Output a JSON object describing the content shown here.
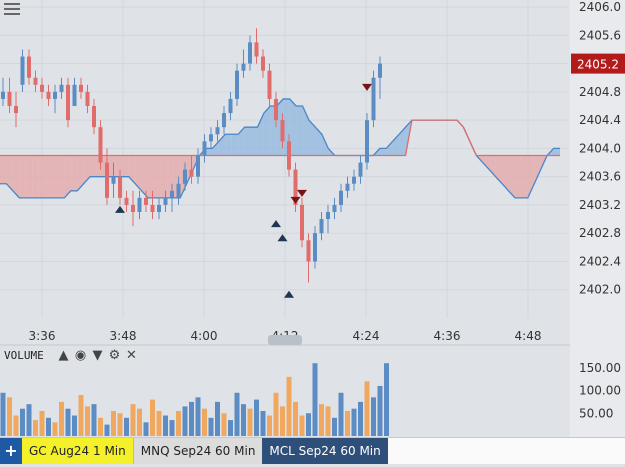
{
  "chart_data": [
    {
      "type": "candlestick",
      "title": "",
      "xlabel": "",
      "ylabel": "",
      "x_ticks": [
        "3:36",
        "3:48",
        "4:00",
        "4:12",
        "4:24",
        "4:36",
        "4:48"
      ],
      "y_ticks": [
        "2406.0",
        "2405.6",
        "2405.2",
        "2404.8",
        "2404.4",
        "2404.0",
        "2403.6",
        "2403.2",
        "2402.8",
        "2402.4",
        "2402.0"
      ],
      "ylim": [
        2401.6,
        2406.1
      ],
      "last_price_label": "2405.2",
      "last_price": 2405.2,
      "colors": {
        "up": "#5b8cc4",
        "down": "#e06c6c",
        "cloud_up": "#8fb6de",
        "cloud_down": "#e6a5a5",
        "span_a": "#4a86c8",
        "span_b": "#e06c6c",
        "price_tag": "#b31b1b"
      },
      "candles": [
        [
          2404.7,
          2405.0,
          2404.6,
          2404.8
        ],
        [
          2404.8,
          2405.0,
          2404.5,
          2404.6
        ],
        [
          2404.6,
          2404.8,
          2404.3,
          2404.5
        ],
        [
          2404.9,
          2405.4,
          2404.8,
          2405.3
        ],
        [
          2405.3,
          2405.4,
          2404.9,
          2405.0
        ],
        [
          2405.0,
          2405.1,
          2404.8,
          2404.9
        ],
        [
          2404.9,
          2405.0,
          2404.7,
          2404.8
        ],
        [
          2404.8,
          2404.9,
          2404.6,
          2404.7
        ],
        [
          2404.7,
          2404.9,
          2404.5,
          2404.8
        ],
        [
          2404.8,
          2405.0,
          2404.7,
          2404.9
        ],
        [
          2404.9,
          2405.0,
          2404.3,
          2404.4
        ],
        [
          2404.6,
          2405.0,
          2404.6,
          2404.9
        ],
        [
          2404.9,
          2405.0,
          2404.7,
          2404.8
        ],
        [
          2404.8,
          2404.9,
          2404.5,
          2404.6
        ],
        [
          2404.6,
          2404.7,
          2404.2,
          2404.3
        ],
        [
          2404.3,
          2404.4,
          2403.7,
          2403.8
        ],
        [
          2403.8,
          2404.0,
          2403.2,
          2403.3
        ],
        [
          2403.5,
          2403.8,
          2403.3,
          2403.6
        ],
        [
          2403.6,
          2403.7,
          2403.2,
          2403.3
        ],
        [
          2403.3,
          2403.4,
          2403.1,
          2403.2
        ],
        [
          2403.2,
          2403.4,
          2402.9,
          2403.1
        ],
        [
          2403.1,
          2403.4,
          2403.0,
          2403.3
        ],
        [
          2403.3,
          2403.4,
          2403.1,
          2403.2
        ],
        [
          2403.2,
          2403.4,
          2403.0,
          2403.1
        ],
        [
          2403.1,
          2403.3,
          2403.0,
          2403.2
        ],
        [
          2403.2,
          2403.4,
          2403.1,
          2403.3
        ],
        [
          2403.3,
          2403.5,
          2403.1,
          2403.4
        ],
        [
          2403.3,
          2403.6,
          2403.2,
          2403.5
        ],
        [
          2403.5,
          2403.8,
          2403.4,
          2403.7
        ],
        [
          2403.7,
          2403.9,
          2403.5,
          2403.6
        ],
        [
          2403.6,
          2404.0,
          2403.5,
          2403.9
        ],
        [
          2403.9,
          2404.2,
          2403.8,
          2404.1
        ],
        [
          2404.1,
          2404.3,
          2404.0,
          2404.2
        ],
        [
          2404.2,
          2404.4,
          2404.1,
          2404.3
        ],
        [
          2404.3,
          2404.6,
          2404.2,
          2404.5
        ],
        [
          2404.5,
          2404.8,
          2404.4,
          2404.7
        ],
        [
          2404.7,
          2405.2,
          2404.6,
          2405.1
        ],
        [
          2405.1,
          2405.4,
          2405.0,
          2405.2
        ],
        [
          2405.2,
          2405.6,
          2405.1,
          2405.5
        ],
        [
          2405.5,
          2405.7,
          2405.2,
          2405.3
        ],
        [
          2405.3,
          2405.4,
          2405.0,
          2405.1
        ],
        [
          2405.1,
          2405.2,
          2404.6,
          2404.7
        ],
        [
          2404.7,
          2404.8,
          2404.3,
          2404.4
        ],
        [
          2404.4,
          2404.5,
          2404.0,
          2404.1
        ],
        [
          2404.1,
          2404.2,
          2403.6,
          2403.7
        ],
        [
          2403.7,
          2403.8,
          2403.1,
          2403.2
        ],
        [
          2403.2,
          2403.3,
          2402.6,
          2402.7
        ],
        [
          2402.7,
          2402.8,
          2402.1,
          2402.4
        ],
        [
          2402.4,
          2402.9,
          2402.3,
          2402.8
        ],
        [
          2402.8,
          2403.1,
          2402.7,
          2403.0
        ],
        [
          2403.0,
          2403.2,
          2402.8,
          2403.1
        ],
        [
          2403.1,
          2403.3,
          2403.0,
          2403.2
        ],
        [
          2403.2,
          2403.5,
          2403.1,
          2403.4
        ],
        [
          2403.4,
          2403.6,
          2403.3,
          2403.5
        ],
        [
          2403.5,
          2403.7,
          2403.4,
          2403.6
        ],
        [
          2403.6,
          2403.9,
          2403.5,
          2403.8
        ],
        [
          2403.8,
          2404.5,
          2403.7,
          2404.4
        ],
        [
          2404.4,
          2405.1,
          2404.3,
          2405.0
        ],
        [
          2405.0,
          2405.3,
          2404.7,
          2405.2
        ]
      ],
      "cloud": {
        "span_a": [
          2403.5,
          2403.5,
          2403.4,
          2403.3,
          2403.3,
          2403.3,
          2403.3,
          2403.3,
          2403.3,
          2403.3,
          2403.3,
          2403.4,
          2403.4,
          2403.5,
          2403.6,
          2403.6,
          2403.6,
          2403.6,
          2403.6,
          2403.6,
          2403.6,
          2403.5,
          2403.4,
          2403.3,
          2403.3,
          2403.3,
          2403.3,
          2403.3,
          2403.3,
          2403.5,
          2403.7,
          2403.9,
          2404.0,
          2404.0,
          2404.1,
          2404.2,
          2404.2,
          2404.2,
          2404.3,
          2404.3,
          2404.3,
          2404.5,
          2404.6,
          2404.6,
          2404.7,
          2404.7,
          2404.6,
          2404.6,
          2404.4,
          2404.3,
          2404.2,
          2404.0,
          2403.9,
          2403.9,
          2403.9,
          2403.9,
          2403.9,
          2403.9,
          2403.9,
          2404.0,
          2404.0,
          2404.1,
          2404.2,
          2404.3,
          2404.4,
          2404.4,
          2404.4,
          2404.4,
          2404.4,
          2404.4,
          2404.4,
          2404.4,
          2404.3,
          2404.1,
          2403.9,
          2403.8,
          2403.7,
          2403.6,
          2403.5,
          2403.4,
          2403.3,
          2403.3,
          2403.3,
          2403.5,
          2403.7,
          2403.9,
          2404.0,
          2404.0
        ],
        "span_b": [
          2403.9,
          2403.9,
          2403.9,
          2403.9,
          2403.9,
          2403.9,
          2403.9,
          2403.9,
          2403.9,
          2403.9,
          2403.9,
          2403.9,
          2403.9,
          2403.9,
          2403.9,
          2403.9,
          2403.9,
          2403.9,
          2403.9,
          2403.9,
          2403.9,
          2403.9,
          2403.9,
          2403.9,
          2403.9,
          2403.9,
          2403.9,
          2403.9,
          2403.9,
          2403.9,
          2403.9,
          2403.9,
          2403.9,
          2403.9,
          2403.9,
          2403.9,
          2403.9,
          2403.9,
          2403.9,
          2403.9,
          2403.9,
          2403.9,
          2403.9,
          2403.9,
          2403.9,
          2403.9,
          2403.9,
          2403.9,
          2403.9,
          2403.9,
          2403.9,
          2403.9,
          2403.9,
          2403.9,
          2403.9,
          2403.9,
          2403.9,
          2403.9,
          2403.9,
          2403.9,
          2403.9,
          2403.9,
          2403.9,
          2403.9,
          2404.4,
          2404.4,
          2404.4,
          2404.4,
          2404.4,
          2404.4,
          2404.4,
          2404.4,
          2404.3,
          2404.1,
          2403.9,
          2403.9,
          2403.9,
          2403.9,
          2403.9,
          2403.9,
          2403.9,
          2403.9,
          2403.9,
          2403.9,
          2403.9,
          2403.9,
          2403.9,
          2403.9
        ]
      },
      "markers": [
        {
          "index": 18,
          "type": "up",
          "price": 2403.2
        },
        {
          "index": 42,
          "type": "up",
          "price": 2403.0
        },
        {
          "index": 43,
          "type": "up",
          "price": 2402.8
        },
        {
          "index": 44,
          "type": "up",
          "price": 2402.0
        },
        {
          "index": 45,
          "type": "down",
          "price": 2403.2
        },
        {
          "index": 46,
          "type": "down",
          "price": 2403.3
        },
        {
          "index": 56,
          "type": "down",
          "price": 2404.8
        }
      ]
    },
    {
      "type": "bar",
      "title": "VOLUME",
      "y_ticks": [
        "150.00",
        "100.00",
        "50.00"
      ],
      "ylim": [
        0,
        200
      ],
      "values": [
        95,
        85,
        45,
        60,
        70,
        35,
        55,
        40,
        30,
        75,
        60,
        45,
        90,
        65,
        70,
        40,
        25,
        55,
        50,
        40,
        70,
        60,
        30,
        80,
        55,
        45,
        35,
        55,
        65,
        75,
        85,
        60,
        40,
        75,
        50,
        35,
        95,
        70,
        60,
        80,
        55,
        45,
        95,
        65,
        130,
        75,
        45,
        50,
        160,
        70,
        65,
        40,
        95,
        55,
        60,
        75,
        120,
        85,
        110,
        160
      ],
      "up": [
        1,
        0,
        0,
        1,
        1,
        0,
        0,
        1,
        0,
        0,
        1,
        1,
        0,
        0,
        1,
        0,
        1,
        0,
        0,
        1,
        0,
        0,
        1,
        0,
        0,
        1,
        1,
        0,
        1,
        1,
        1,
        0,
        1,
        1,
        0,
        1,
        1,
        1,
        0,
        1,
        1,
        0,
        0,
        0,
        0,
        0,
        0,
        1,
        1,
        0,
        0,
        1,
        1,
        0,
        1,
        1,
        0,
        1,
        1,
        1
      ]
    }
  ],
  "volume_label": "VOLUME",
  "volume_controls": [
    "chevron-up-icon",
    "eye-icon",
    "chevron-down-icon",
    "settings-icon",
    "close-icon"
  ],
  "tabs": [
    {
      "label": "GC Aug24 1 Min"
    },
    {
      "label": "MNQ Sep24 60 Min"
    },
    {
      "label": "MCL Sep24 60 Min"
    }
  ],
  "add_tab_label": "+"
}
